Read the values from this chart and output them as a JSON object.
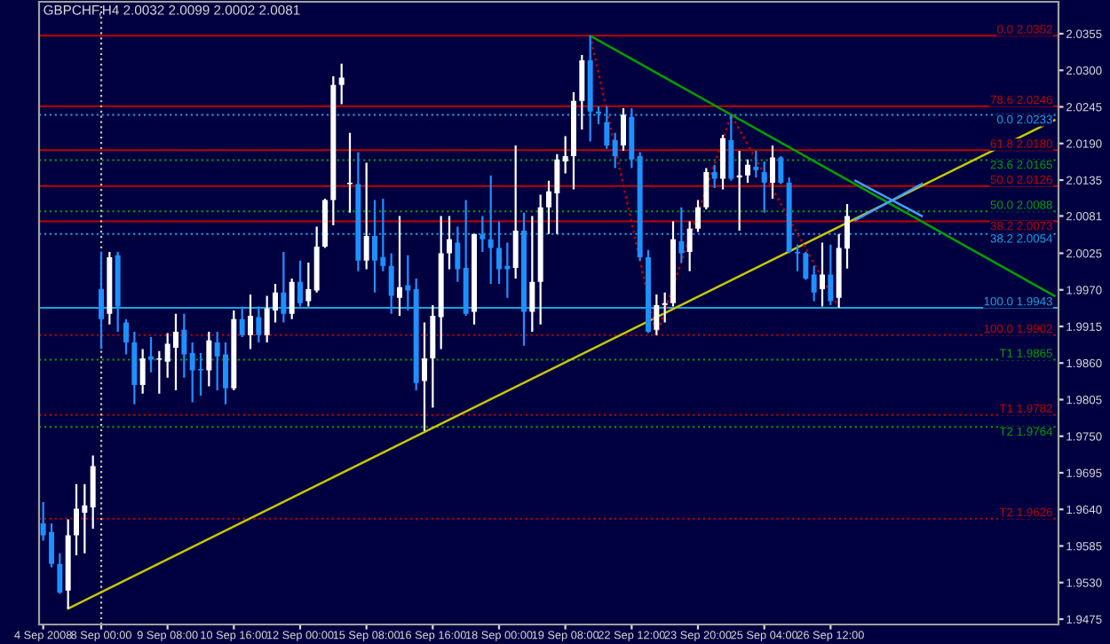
{
  "chart_data": {
    "type": "candlestick",
    "title": "GBPCHF,H4 2.0032 2.0099 2.0002 2.0081",
    "ohlc": [
      [
        1.9619,
        1.9651,
        1.9593,
        1.9601
      ],
      [
        1.9606,
        1.9619,
        1.9553,
        1.9558
      ],
      [
        1.9558,
        1.9574,
        1.9513,
        1.9515
      ],
      [
        1.9518,
        1.9625,
        1.9491,
        1.9601
      ],
      [
        1.9601,
        1.9678,
        1.9571,
        1.9641
      ],
      [
        1.9635,
        1.9678,
        1.9574,
        1.9646
      ],
      [
        1.9643,
        1.9721,
        1.9611,
        1.9705
      ],
      [
        1.9971,
        2.0027,
        1.9881,
        1.9926
      ],
      [
        1.9934,
        2.0027,
        1.9918,
        2.0019
      ],
      [
        2.0022,
        2.0027,
        1.9907,
        1.9945
      ],
      [
        1.9921,
        1.9926,
        1.9873,
        1.9891
      ],
      [
        1.9891,
        1.9907,
        1.9798,
        1.9827
      ],
      [
        1.9827,
        1.9881,
        1.9814,
        1.9867
      ],
      [
        1.987,
        1.9899,
        1.9846,
        1.9865
      ],
      [
        1.9865,
        1.9878,
        1.9814,
        1.9867
      ],
      [
        1.9862,
        1.9905,
        1.9838,
        1.9889
      ],
      [
        1.9883,
        1.9934,
        1.9819,
        1.9907
      ],
      [
        1.991,
        1.9934,
        1.9838,
        1.9873
      ],
      [
        1.9875,
        1.9891,
        1.9801,
        1.9849
      ],
      [
        1.9851,
        1.9875,
        1.9811,
        1.9849
      ],
      [
        1.9849,
        1.9907,
        1.9825,
        1.9894
      ],
      [
        1.9891,
        1.9907,
        1.9819,
        1.987
      ],
      [
        1.9873,
        1.9891,
        1.9798,
        1.9822
      ],
      [
        1.9822,
        1.9939,
        1.9819,
        1.9926
      ],
      [
        1.9926,
        1.9945,
        1.9899,
        1.9902
      ],
      [
        1.9902,
        1.9963,
        1.9881,
        1.9931
      ],
      [
        1.9929,
        1.9945,
        1.9891,
        1.9902
      ],
      [
        1.9902,
        1.9961,
        1.9891,
        1.9942
      ],
      [
        1.9939,
        1.9979,
        1.9921,
        1.9966
      ],
      [
        1.9966,
        2.0027,
        1.9921,
        1.9934
      ],
      [
        1.9934,
        1.9987,
        1.9926,
        1.9982
      ],
      [
        1.9982,
        2.0014,
        1.9945,
        1.995
      ],
      [
        1.9953,
        2.0011,
        1.9945,
        1.9971
      ],
      [
        1.9969,
        2.0065,
        1.9966,
        2.0035
      ],
      [
        2.0035,
        2.0107,
        2.0033,
        2.0105
      ],
      [
        2.0105,
        2.0291,
        2.0067,
        2.0278
      ],
      [
        2.0278,
        2.031,
        2.0249,
        2.0289
      ],
      [
        2.0129,
        2.0206,
        2.0086,
        2.0131
      ],
      [
        2.0129,
        2.0177,
        1.9998,
        2.0014
      ],
      [
        2.0014,
        2.0161,
        2.0001,
        2.0051
      ],
      [
        2.0051,
        2.0105,
        1.9966,
        2.0014
      ],
      [
        2.0019,
        2.0107,
        1.9998,
        2.0006
      ],
      [
        2.0006,
        2.0025,
        1.9934,
        1.9961
      ],
      [
        1.9958,
        2.0081,
        1.9931,
        1.9974
      ],
      [
        1.9977,
        2.0022,
        1.9939,
        1.9969
      ],
      [
        1.9971,
        1.9987,
        1.9819,
        1.983
      ],
      [
        1.9833,
        1.9921,
        1.9758,
        1.9867
      ],
      [
        1.9867,
        1.9947,
        1.9793,
        1.9931
      ],
      [
        1.9929,
        2.0081,
        1.9881,
        2.0025
      ],
      [
        2.0025,
        2.0081,
        2.0001,
        2.0046
      ],
      [
        2.0041,
        2.0065,
        1.9982,
        2.0001
      ],
      [
        2.0003,
        2.0105,
        1.9931,
        1.9934
      ],
      [
        1.9937,
        2.0054,
        1.9918,
        2.0054
      ],
      [
        2.0054,
        2.0081,
        2.0027,
        2.0046
      ],
      [
        2.0046,
        2.0142,
        1.9979,
        2.0033
      ],
      [
        2.0033,
        2.0073,
        1.9979,
        2.0001
      ],
      [
        2.0006,
        2.0041,
        1.9958,
        2.0001
      ],
      [
        2.0003,
        2.0187,
        1.9987,
        2.0059
      ],
      [
        2.0059,
        2.0086,
        1.9886,
        1.9937
      ],
      [
        1.9937,
        2.0081,
        1.9907,
        1.9982
      ],
      [
        1.9982,
        2.0113,
        1.9918,
        2.0094
      ],
      [
        2.0094,
        2.0134,
        2.0054,
        2.0118
      ],
      [
        2.0115,
        2.0174,
        2.0054,
        2.0166
      ],
      [
        2.0163,
        2.0201,
        2.0145,
        2.0171
      ],
      [
        2.0171,
        2.0267,
        2.0121,
        2.0254
      ],
      [
        2.0254,
        2.0323,
        2.0211,
        2.0315
      ],
      [
        2.0315,
        2.0352,
        2.0193,
        2.0238
      ],
      [
        2.0238,
        2.0246,
        2.0219,
        2.0235
      ],
      [
        2.0222,
        2.0246,
        2.0182,
        2.0187
      ],
      [
        2.0195,
        2.0206,
        2.0153,
        2.0171
      ],
      [
        2.0187,
        2.0243,
        2.0179,
        2.0233
      ],
      [
        2.023,
        2.0243,
        2.0153,
        2.0166
      ],
      [
        2.0171,
        2.0177,
        2.0014,
        2.0019
      ],
      [
        2.0019,
        2.003,
        1.9905,
        1.9907
      ],
      [
        1.991,
        1.9963,
        1.9902,
        1.9947
      ],
      [
        1.9947,
        1.9966,
        1.9921,
        1.995
      ],
      [
        1.995,
        2.0073,
        1.9945,
        2.0046
      ],
      [
        2.0043,
        2.0094,
        2.0011,
        2.0025
      ],
      [
        2.0027,
        2.0073,
        1.9998,
        2.0062
      ],
      [
        2.0062,
        2.0105,
        2.0057,
        2.0094
      ],
      [
        2.0094,
        2.0153,
        2.0091,
        2.0147
      ],
      [
        2.0147,
        2.0158,
        2.0123,
        2.0137
      ],
      [
        2.0137,
        2.0203,
        2.0121,
        2.0198
      ],
      [
        2.0195,
        2.0233,
        2.0134,
        2.0137
      ],
      [
        2.0139,
        2.0179,
        2.0059,
        2.0142
      ],
      [
        2.0142,
        2.0166,
        2.0131,
        2.0158
      ],
      [
        2.0155,
        2.0179,
        2.0139,
        2.015
      ],
      [
        2.0147,
        2.0163,
        2.0086,
        2.0131
      ],
      [
        2.0131,
        2.0187,
        2.0107,
        2.0169
      ],
      [
        2.0169,
        2.0171,
        2.0129,
        2.0131
      ],
      [
        2.0131,
        2.0139,
        2.0025,
        2.0027
      ],
      [
        2.0027,
        2.0038,
        1.9998,
        2.0025
      ],
      [
        2.0025,
        2.0027,
        1.9985,
        1.9987
      ],
      [
        1.9993,
        2.0006,
        1.9953,
        1.9966
      ],
      [
        1.9971,
        2.0041,
        1.9945,
        1.9993
      ],
      [
        1.9993,
        2.0038,
        1.9947,
        1.9953
      ],
      [
        1.9958,
        2.0054,
        1.9943,
        2.0033
      ],
      [
        2.0032,
        2.0099,
        2.0002,
        2.0081
      ],
      null,
      null,
      null,
      null,
      null,
      null,
      null,
      null,
      null,
      null,
      null,
      null,
      null,
      null,
      null,
      null,
      null,
      null,
      null,
      null,
      null,
      null,
      null,
      null,
      null
    ],
    "colors": [
      "#1e90ff",
      "#1e90ff",
      "#1e90ff",
      "#ffffff",
      "#ffffff",
      "#ffffff",
      "#ffffff",
      "#1e90ff",
      "#ffffff",
      "#1e90ff",
      "#1e90ff",
      "#1e90ff",
      "#ffffff",
      "#1e90ff",
      "#ffffff",
      "#ffffff",
      "#ffffff",
      "#1e90ff",
      "#1e90ff",
      "#1e90ff",
      "#ffffff",
      "#1e90ff",
      "#1e90ff",
      "#ffffff",
      "#1e90ff",
      "#ffffff",
      "#1e90ff",
      "#ffffff",
      "#ffffff",
      "#1e90ff",
      "#ffffff",
      "#1e90ff",
      "#ffffff",
      "#ffffff",
      "#ffffff",
      "#ffffff",
      "#ffffff",
      "#ffffff",
      "#1e90ff",
      "#ffffff",
      "#1e90ff",
      "#1e90ff",
      "#1e90ff",
      "#ffffff",
      "#1e90ff",
      "#1e90ff",
      "#ffffff",
      "#ffffff",
      "#ffffff",
      "#ffffff",
      "#1e90ff",
      "#1e90ff",
      "#ffffff",
      "#1e90ff",
      "#1e90ff",
      "#1e90ff",
      "#1e90ff",
      "#ffffff",
      "#1e90ff",
      "#ffffff",
      "#ffffff",
      "#ffffff",
      "#ffffff",
      "#ffffff",
      "#ffffff",
      "#ffffff",
      "#1e90ff",
      "#1e90ff",
      "#1e90ff",
      "#1e90ff",
      "#ffffff",
      "#1e90ff",
      "#1e90ff",
      "#1e90ff",
      "#ffffff",
      "#ffffff",
      "#ffffff",
      "#1e90ff",
      "#ffffff",
      "#ffffff",
      "#ffffff",
      "#1e90ff",
      "#ffffff",
      "#1e90ff",
      "#ffffff",
      "#ffffff",
      "#1e90ff",
      "#1e90ff",
      "#ffffff",
      "#1e90ff",
      "#1e90ff",
      "#1e90ff",
      "#1e90ff",
      "#1e90ff",
      "#ffffff",
      "#1e90ff",
      "#ffffff",
      "#ffffff",
      null,
      null,
      null,
      null,
      null,
      null,
      null,
      null,
      null,
      null,
      null,
      null,
      null,
      null,
      null,
      null,
      null,
      null,
      null,
      null,
      null,
      null,
      null,
      null,
      null
    ],
    "series": [
      {
        "type": "line",
        "values": [
          null,
          null,
          null,
          1.9491,
          null,
          null,
          null,
          null,
          null,
          null,
          null,
          null,
          null,
          null,
          null,
          null,
          null,
          null,
          null,
          null,
          null,
          null,
          null,
          null,
          null,
          null,
          null,
          null,
          null,
          null,
          null,
          null,
          null,
          null,
          null,
          null,
          null,
          null,
          null,
          null,
          null,
          null,
          null,
          null,
          null,
          null,
          null,
          null,
          null,
          null,
          null,
          null,
          null,
          null,
          null,
          null,
          null,
          null,
          null,
          null,
          null,
          null,
          null,
          null,
          null,
          null,
          null,
          null,
          null,
          null,
          null,
          null,
          null,
          null,
          null,
          null,
          null,
          null,
          null,
          null,
          null,
          null,
          null,
          null,
          null,
          null,
          null,
          null,
          null,
          null,
          null,
          null,
          null,
          null,
          null,
          null,
          null,
          null,
          null,
          null,
          null,
          null,
          null,
          null,
          null,
          null,
          null,
          null,
          null,
          null,
          null,
          null,
          null,
          null,
          null,
          null,
          null,
          null,
          null,
          null,
          null,
          null,
          2.0225
        ],
        "color": "#c8c800",
        "line_style": "solid"
      },
      {
        "type": "line",
        "values": [
          null,
          null,
          null,
          null,
          null,
          null,
          null,
          null,
          null,
          null,
          null,
          null,
          null,
          null,
          null,
          null,
          null,
          null,
          null,
          null,
          null,
          null,
          null,
          null,
          null,
          null,
          null,
          null,
          null,
          null,
          null,
          null,
          null,
          null,
          null,
          null,
          null,
          null,
          null,
          null,
          null,
          null,
          null,
          null,
          null,
          null,
          null,
          null,
          null,
          null,
          null,
          null,
          null,
          null,
          null,
          null,
          null,
          null,
          null,
          null,
          null,
          null,
          null,
          null,
          null,
          null,
          2.0352,
          null,
          null,
          null,
          null,
          null,
          null,
          null,
          null,
          null,
          null,
          null,
          null,
          null,
          null,
          null,
          null,
          null,
          null,
          null,
          null,
          null,
          null,
          null,
          null,
          null,
          null,
          null,
          null,
          null,
          null,
          null,
          null,
          null,
          null,
          null,
          null,
          null,
          null,
          null,
          null,
          null,
          null,
          null,
          null,
          null,
          null,
          null,
          null,
          null,
          null,
          null,
          null,
          null,
          null,
          null,
          1.9961
        ],
        "color": "#00a000",
        "line_style": "solid"
      },
      {
        "type": "line",
        "values": [
          null,
          null,
          null,
          null,
          null,
          null,
          null,
          null,
          null,
          null,
          null,
          null,
          null,
          null,
          null,
          null,
          null,
          null,
          null,
          null,
          null,
          null,
          null,
          null,
          null,
          null,
          null,
          null,
          null,
          null,
          null,
          null,
          null,
          null,
          null,
          null,
          null,
          null,
          null,
          null,
          null,
          null,
          null,
          null,
          null,
          null,
          null,
          null,
          null,
          null,
          null,
          null,
          null,
          null,
          null,
          null,
          null,
          null,
          null,
          null,
          null,
          null,
          null,
          null,
          null,
          null,
          null,
          null,
          null,
          null,
          null,
          null,
          null,
          null,
          null,
          null,
          null,
          null,
          null,
          null,
          null,
          null,
          null,
          null,
          null,
          null,
          null,
          null,
          null,
          null,
          null,
          null,
          null,
          null,
          null,
          null,
          null,
          null,
          2.0134,
          null,
          null,
          null,
          null,
          null,
          null,
          null,
          2.0081,
          null,
          null,
          null,
          null,
          null,
          null,
          null,
          null,
          null,
          null,
          null,
          null,
          null,
          null,
          null,
          null
        ],
        "color": "#40a0ff",
        "line_style": "solid"
      },
      {
        "type": "line",
        "values": [
          null,
          null,
          null,
          null,
          null,
          null,
          null,
          null,
          null,
          null,
          null,
          null,
          null,
          null,
          null,
          null,
          null,
          null,
          null,
          null,
          null,
          null,
          null,
          null,
          null,
          null,
          null,
          null,
          null,
          null,
          null,
          null,
          null,
          null,
          null,
          null,
          null,
          null,
          null,
          null,
          null,
          null,
          null,
          null,
          null,
          null,
          null,
          null,
          null,
          null,
          null,
          null,
          null,
          null,
          null,
          null,
          null,
          null,
          null,
          null,
          null,
          null,
          null,
          null,
          null,
          null,
          null,
          null,
          null,
          null,
          null,
          null,
          null,
          null,
          null,
          null,
          null,
          null,
          null,
          null,
          null,
          null,
          null,
          null,
          null,
          null,
          null,
          null,
          null,
          null,
          null,
          null,
          null,
          null,
          null,
          null,
          null,
          null,
          2.0075,
          null,
          null,
          null,
          null,
          null,
          null,
          null,
          2.0129,
          null,
          null,
          null,
          null,
          null,
          null,
          null,
          null,
          null,
          null,
          null,
          null,
          null,
          null,
          null,
          null
        ],
        "color": "#40a0ff",
        "line_style": "solid"
      },
      {
        "type": "line",
        "values": [
          null,
          null,
          null,
          null,
          null,
          null,
          null,
          null,
          null,
          null,
          null,
          null,
          null,
          null,
          null,
          null,
          null,
          null,
          null,
          null,
          null,
          null,
          null,
          null,
          null,
          null,
          null,
          null,
          null,
          null,
          null,
          null,
          null,
          null,
          null,
          null,
          null,
          null,
          null,
          null,
          null,
          null,
          null,
          null,
          null,
          null,
          null,
          null,
          null,
          null,
          null,
          null,
          null,
          null,
          null,
          null,
          null,
          null,
          null,
          null,
          null,
          null,
          null,
          null,
          null,
          null,
          2.0352,
          null,
          null,
          null,
          null,
          null,
          null,
          null,
          1.9902,
          null,
          null,
          null,
          null,
          null,
          null,
          null,
          null,
          2.0233,
          null,
          null,
          null,
          null,
          null,
          null,
          null,
          null,
          null,
          null,
          null,
          null,
          1.9943,
          null,
          null,
          null,
          null,
          null,
          null,
          null,
          null,
          null,
          null,
          null,
          null,
          null,
          null,
          null,
          null,
          null,
          null,
          null,
          null,
          null,
          null,
          null,
          null,
          null,
          null
        ],
        "color": "#c00000",
        "line_style": "dotted"
      }
    ],
    "ref_lines": [
      {
        "axis": "y",
        "value": 2.0352,
        "label": "0.0 2.0352",
        "color": "#c00000",
        "line_style": "solid"
      },
      {
        "axis": "y",
        "value": 2.0246,
        "label": "78.6 2.0246",
        "color": "#c00000",
        "line_style": "solid"
      },
      {
        "axis": "y",
        "value": 2.0233,
        "label": "0.0 2.0233",
        "color": "#1ea0e0",
        "line_style": "dotted"
      },
      {
        "axis": "y",
        "value": 2.018,
        "label": "61.8 2.0180",
        "color": "#c00000",
        "line_style": "solid"
      },
      {
        "axis": "y",
        "value": 2.0165,
        "label": "23.6 2.0165",
        "color": "#00a000",
        "line_style": "dotted"
      },
      {
        "axis": "y",
        "value": 2.0126,
        "label": "50.0 2.0126",
        "color": "#c00000",
        "line_style": "solid"
      },
      {
        "axis": "y",
        "value": 2.0088,
        "label": "50.0 2.0088",
        "color": "#00a000",
        "line_style": "dotted"
      },
      {
        "axis": "y",
        "value": 2.0073,
        "label": "38.2 2.0073",
        "color": "#c00000",
        "line_style": "solid"
      },
      {
        "axis": "y",
        "value": 2.0054,
        "label": "38.2 2.0054",
        "color": "#1ea0e0",
        "line_style": "dotted"
      },
      {
        "axis": "y",
        "value": 1.9943,
        "label": "100.0 1.9943",
        "color": "#1ea0e0",
        "line_style": "solid"
      },
      {
        "axis": "y",
        "value": 1.9902,
        "label": "100.0 1.9902",
        "color": "#c00000",
        "line_style": "dotted"
      },
      {
        "axis": "y",
        "value": 1.9865,
        "label": "T1 1.9865",
        "color": "#00a000",
        "line_style": "dotted"
      },
      {
        "axis": "y",
        "value": 1.9782,
        "label": "T1 1.9782",
        "color": "#c00000",
        "line_style": "dotted"
      },
      {
        "axis": "y",
        "value": 1.9764,
        "label": "T2 1.9764",
        "color": "#00a000",
        "line_style": "dotted"
      },
      {
        "axis": "y",
        "value": 1.9626,
        "label": "T2 1.9626",
        "color": "#c00000",
        "line_style": "dotted"
      },
      {
        "axis": "x",
        "value": "8 Sep 00:00",
        "color": "#c8c8a0",
        "line_style": "dotted"
      }
    ],
    "categories": [
      "4 Sep 2008",
      null,
      null,
      null,
      null,
      null,
      null,
      "8 Sep 00:00",
      null,
      null,
      null,
      null,
      null,
      null,
      null,
      "9 Sep 08:00",
      null,
      null,
      null,
      null,
      null,
      null,
      null,
      "10 Sep 16:00",
      null,
      null,
      null,
      null,
      null,
      null,
      null,
      "12 Sep 00:00",
      null,
      null,
      null,
      null,
      null,
      null,
      null,
      "15 Sep 08:00",
      null,
      null,
      null,
      null,
      null,
      null,
      null,
      "16 Sep 16:00",
      null,
      null,
      null,
      null,
      null,
      null,
      null,
      "18 Sep 00:00",
      null,
      null,
      null,
      null,
      null,
      null,
      null,
      "19 Sep 08:00",
      null,
      null,
      null,
      null,
      null,
      null,
      null,
      "22 Sep 12:00",
      null,
      null,
      null,
      null,
      null,
      null,
      null,
      "23 Sep 20:00",
      null,
      null,
      null,
      null,
      null,
      null,
      null,
      "25 Sep 04:00",
      null,
      null,
      null,
      null,
      null,
      null,
      null,
      "26 Sep 12:00",
      null,
      null,
      null,
      null,
      null,
      null,
      null,
      null,
      null,
      null,
      null,
      null,
      null,
      null,
      null,
      null,
      null,
      null,
      null,
      null,
      null,
      null,
      null,
      null,
      null,
      null,
      null
    ],
    "ylim": [
      1.9467,
      2.0403
    ],
    "yticks": [
      {
        "value": 2.0355,
        "label": "2.0355"
      },
      {
        "value": 2.03,
        "label": "2.0300"
      },
      {
        "value": 2.0245,
        "label": "2.0245"
      },
      {
        "value": 2.019,
        "label": "2.0190"
      },
      {
        "value": 2.0135,
        "label": "2.0135"
      },
      {
        "value": 2.0081,
        "label": "2.0081"
      },
      {
        "value": 2.0025,
        "label": "2.0025"
      },
      {
        "value": 1.997,
        "label": "1.9970"
      },
      {
        "value": 1.9915,
        "label": "1.9915"
      },
      {
        "value": 1.986,
        "label": "1.9860"
      },
      {
        "value": 1.9805,
        "label": "1.9805"
      },
      {
        "value": 1.975,
        "label": "1.9750"
      },
      {
        "value": 1.9695,
        "label": "1.9695"
      },
      {
        "value": 1.964,
        "label": "1.9640"
      },
      {
        "value": 1.9585,
        "label": "1.9585"
      },
      {
        "value": 1.953,
        "label": "1.9530"
      },
      {
        "value": 1.9475,
        "label": "1.9475"
      }
    ],
    "grid": false,
    "legend": false
  }
}
